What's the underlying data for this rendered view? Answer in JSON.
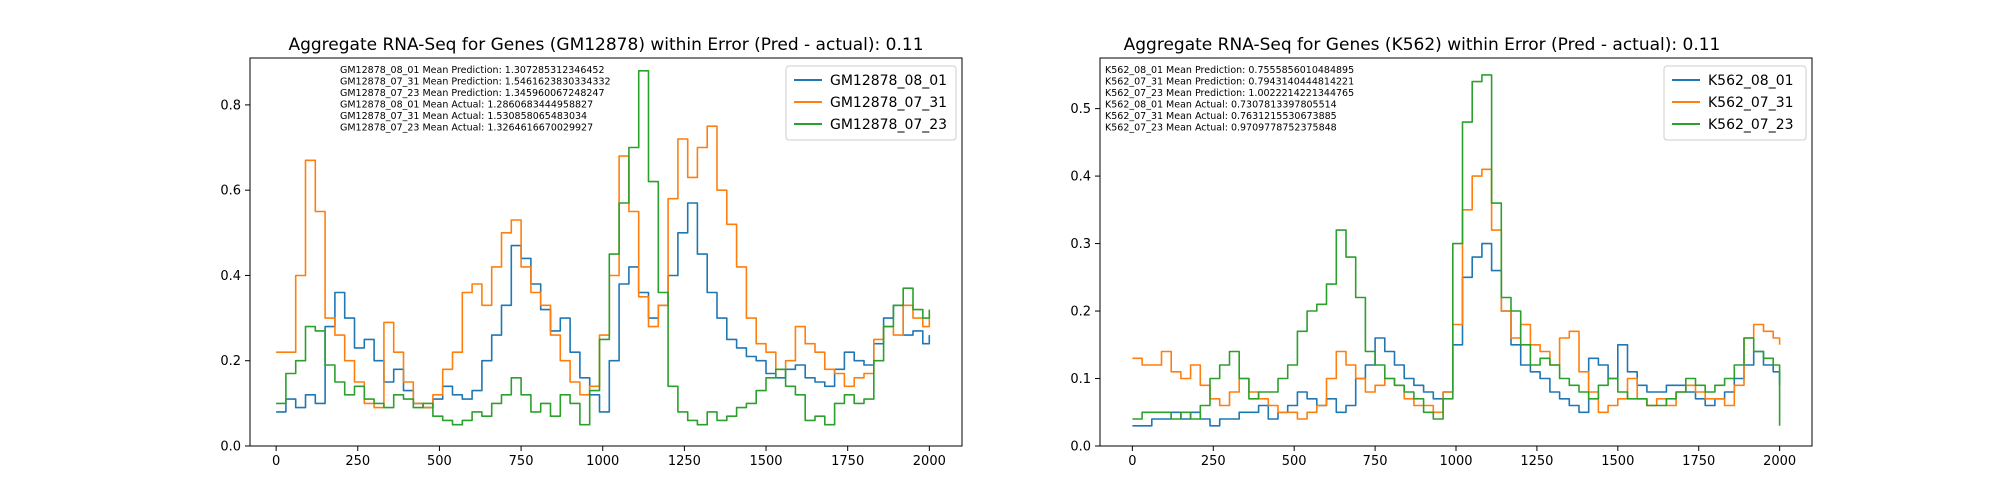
{
  "chart_data": [
    {
      "type": "line",
      "title": "Aggregate RNA-Seq for Genes (GM12878) within Error (Pred - actual): 0.11",
      "xlabel": "",
      "ylabel": "",
      "xlim": [
        -80,
        2100
      ],
      "ylim": [
        0,
        0.91
      ],
      "xticks": [
        0,
        250,
        500,
        750,
        1000,
        1250,
        1500,
        1750,
        2000
      ],
      "yticks": [
        0.0,
        0.2,
        0.4,
        0.6,
        0.8
      ],
      "grid": false,
      "legend_position": "top-right",
      "annotations": [
        "GM12878_08_01 Mean Prediction: 1.307285312346452",
        "GM12878_07_31 Mean Prediction: 1.5461623830334332",
        "GM12878_07_23 Mean Prediction: 1.345960067248247",
        "GM12878_08_01 Mean Actual: 1.2860683444958827",
        "GM12878_07_31 Mean Actual: 1.530858065483034",
        "GM12878_07_23 Mean Actual: 1.3264616670029927"
      ],
      "series": [
        {
          "name": "GM12878_08_01",
          "color": "#1f77b4",
          "x": [
            0,
            30,
            60,
            90,
            120,
            150,
            180,
            210,
            240,
            270,
            300,
            330,
            360,
            390,
            420,
            450,
            480,
            510,
            540,
            570,
            600,
            630,
            660,
            690,
            720,
            750,
            780,
            810,
            840,
            870,
            900,
            930,
            960,
            990,
            1020,
            1050,
            1080,
            1110,
            1140,
            1170,
            1200,
            1230,
            1260,
            1290,
            1320,
            1350,
            1380,
            1410,
            1440,
            1470,
            1500,
            1530,
            1560,
            1590,
            1620,
            1650,
            1680,
            1710,
            1740,
            1770,
            1800,
            1830,
            1860,
            1890,
            1920,
            1950,
            1980,
            2000
          ],
          "y": [
            0.08,
            0.11,
            0.09,
            0.12,
            0.1,
            0.28,
            0.36,
            0.3,
            0.23,
            0.25,
            0.2,
            0.15,
            0.18,
            0.13,
            0.1,
            0.09,
            0.11,
            0.14,
            0.12,
            0.11,
            0.13,
            0.2,
            0.26,
            0.33,
            0.47,
            0.44,
            0.38,
            0.32,
            0.27,
            0.3,
            0.22,
            0.16,
            0.12,
            0.08,
            0.2,
            0.38,
            0.42,
            0.36,
            0.3,
            0.33,
            0.4,
            0.5,
            0.57,
            0.45,
            0.36,
            0.3,
            0.25,
            0.23,
            0.21,
            0.2,
            0.17,
            0.16,
            0.18,
            0.19,
            0.16,
            0.15,
            0.14,
            0.18,
            0.22,
            0.2,
            0.19,
            0.24,
            0.3,
            0.33,
            0.26,
            0.27,
            0.24,
            0.26
          ]
        },
        {
          "name": "GM12878_07_31",
          "color": "#ff7f0e",
          "x": [
            0,
            30,
            60,
            90,
            120,
            150,
            180,
            210,
            240,
            270,
            300,
            330,
            360,
            390,
            420,
            450,
            480,
            510,
            540,
            570,
            600,
            630,
            660,
            690,
            720,
            750,
            780,
            810,
            840,
            870,
            900,
            930,
            960,
            990,
            1020,
            1050,
            1080,
            1110,
            1140,
            1170,
            1200,
            1230,
            1260,
            1290,
            1320,
            1350,
            1380,
            1410,
            1440,
            1470,
            1500,
            1530,
            1560,
            1590,
            1620,
            1650,
            1680,
            1710,
            1740,
            1770,
            1800,
            1830,
            1860,
            1890,
            1920,
            1950,
            1980,
            2000
          ],
          "y": [
            0.22,
            0.22,
            0.4,
            0.67,
            0.55,
            0.3,
            0.26,
            0.2,
            0.15,
            0.1,
            0.09,
            0.29,
            0.22,
            0.15,
            0.1,
            0.09,
            0.12,
            0.18,
            0.22,
            0.36,
            0.38,
            0.33,
            0.42,
            0.5,
            0.53,
            0.42,
            0.36,
            0.33,
            0.26,
            0.2,
            0.15,
            0.12,
            0.14,
            0.26,
            0.4,
            0.68,
            0.55,
            0.35,
            0.28,
            0.33,
            0.58,
            0.72,
            0.63,
            0.7,
            0.75,
            0.6,
            0.52,
            0.42,
            0.3,
            0.24,
            0.22,
            0.18,
            0.2,
            0.28,
            0.24,
            0.22,
            0.18,
            0.17,
            0.14,
            0.16,
            0.17,
            0.25,
            0.28,
            0.26,
            0.33,
            0.3,
            0.28,
            0.31
          ]
        },
        {
          "name": "GM12878_07_23",
          "color": "#2ca02c",
          "x": [
            0,
            30,
            60,
            90,
            120,
            150,
            180,
            210,
            240,
            270,
            300,
            330,
            360,
            390,
            420,
            450,
            480,
            510,
            540,
            570,
            600,
            630,
            660,
            690,
            720,
            750,
            780,
            810,
            840,
            870,
            900,
            930,
            960,
            990,
            1020,
            1050,
            1080,
            1110,
            1140,
            1170,
            1200,
            1230,
            1260,
            1290,
            1320,
            1350,
            1380,
            1410,
            1440,
            1470,
            1500,
            1530,
            1560,
            1590,
            1620,
            1650,
            1680,
            1710,
            1740,
            1770,
            1800,
            1830,
            1860,
            1890,
            1920,
            1950,
            1980,
            2000
          ],
          "y": [
            0.1,
            0.17,
            0.2,
            0.28,
            0.27,
            0.19,
            0.15,
            0.12,
            0.14,
            0.11,
            0.1,
            0.09,
            0.12,
            0.11,
            0.09,
            0.1,
            0.07,
            0.06,
            0.05,
            0.06,
            0.08,
            0.07,
            0.1,
            0.12,
            0.16,
            0.12,
            0.08,
            0.1,
            0.07,
            0.12,
            0.1,
            0.05,
            0.13,
            0.25,
            0.45,
            0.57,
            0.7,
            0.88,
            0.62,
            0.36,
            0.14,
            0.08,
            0.06,
            0.05,
            0.08,
            0.06,
            0.07,
            0.09,
            0.1,
            0.13,
            0.16,
            0.18,
            0.14,
            0.12,
            0.06,
            0.07,
            0.05,
            0.1,
            0.12,
            0.1,
            0.11,
            0.2,
            0.28,
            0.33,
            0.37,
            0.32,
            0.3,
            0.32
          ]
        }
      ]
    },
    {
      "type": "line",
      "title": "Aggregate RNA-Seq for Genes (K562) within Error (Pred - actual): 0.11",
      "xlabel": "",
      "ylabel": "",
      "xlim": [
        -100,
        2100
      ],
      "ylim": [
        0,
        0.575
      ],
      "xticks": [
        0,
        250,
        500,
        750,
        1000,
        1250,
        1500,
        1750,
        2000
      ],
      "yticks": [
        0.0,
        0.1,
        0.2,
        0.3,
        0.4,
        0.5
      ],
      "grid": false,
      "legend_position": "top-right",
      "annotations": [
        "K562_08_01 Mean Prediction: 0.7555856010484895",
        "K562_07_31 Mean Prediction: 0.7943140444814221",
        "K562_07_23 Mean Prediction: 1.0022214221344765",
        "K562_08_01 Mean Actual: 0.7307813397805514",
        "K562_07_31 Mean Actual: 0.7631215530673885",
        "K562_07_23 Mean Actual: 0.9709778752375848"
      ],
      "series": [
        {
          "name": "K562_08_01",
          "color": "#1f77b4",
          "x": [
            0,
            30,
            60,
            90,
            120,
            150,
            180,
            210,
            240,
            270,
            300,
            330,
            360,
            390,
            420,
            450,
            480,
            510,
            540,
            570,
            600,
            630,
            660,
            690,
            720,
            750,
            780,
            810,
            840,
            870,
            900,
            930,
            960,
            990,
            1020,
            1050,
            1080,
            1110,
            1140,
            1170,
            1200,
            1230,
            1260,
            1290,
            1320,
            1350,
            1380,
            1410,
            1440,
            1470,
            1500,
            1530,
            1560,
            1590,
            1620,
            1650,
            1680,
            1710,
            1740,
            1770,
            1800,
            1830,
            1860,
            1890,
            1920,
            1950,
            1980,
            2000
          ],
          "y": [
            0.03,
            0.03,
            0.04,
            0.04,
            0.05,
            0.04,
            0.05,
            0.04,
            0.03,
            0.04,
            0.04,
            0.05,
            0.05,
            0.06,
            0.04,
            0.05,
            0.06,
            0.08,
            0.07,
            0.06,
            0.07,
            0.05,
            0.06,
            0.1,
            0.12,
            0.16,
            0.14,
            0.12,
            0.1,
            0.09,
            0.08,
            0.07,
            0.08,
            0.15,
            0.25,
            0.28,
            0.3,
            0.26,
            0.2,
            0.15,
            0.12,
            0.11,
            0.1,
            0.08,
            0.07,
            0.06,
            0.05,
            0.13,
            0.12,
            0.1,
            0.15,
            0.11,
            0.09,
            0.08,
            0.08,
            0.09,
            0.09,
            0.08,
            0.07,
            0.06,
            0.07,
            0.08,
            0.1,
            0.12,
            0.14,
            0.12,
            0.11,
            0.09
          ]
        },
        {
          "name": "K562_07_31",
          "color": "#ff7f0e",
          "x": [
            0,
            30,
            60,
            90,
            120,
            150,
            180,
            210,
            240,
            270,
            300,
            330,
            360,
            390,
            420,
            450,
            480,
            510,
            540,
            570,
            600,
            630,
            660,
            690,
            720,
            750,
            780,
            810,
            840,
            870,
            900,
            930,
            960,
            990,
            1020,
            1050,
            1080,
            1110,
            1140,
            1170,
            1200,
            1230,
            1260,
            1290,
            1320,
            1350,
            1380,
            1410,
            1440,
            1470,
            1500,
            1530,
            1560,
            1590,
            1620,
            1650,
            1680,
            1710,
            1740,
            1770,
            1800,
            1830,
            1860,
            1890,
            1920,
            1950,
            1980,
            2000
          ],
          "y": [
            0.13,
            0.12,
            0.12,
            0.14,
            0.11,
            0.1,
            0.12,
            0.09,
            0.07,
            0.06,
            0.08,
            0.1,
            0.08,
            0.07,
            0.06,
            0.05,
            0.05,
            0.04,
            0.05,
            0.06,
            0.1,
            0.14,
            0.12,
            0.1,
            0.08,
            0.09,
            0.1,
            0.09,
            0.07,
            0.06,
            0.06,
            0.05,
            0.08,
            0.18,
            0.35,
            0.4,
            0.41,
            0.32,
            0.2,
            0.16,
            0.18,
            0.15,
            0.14,
            0.12,
            0.16,
            0.17,
            0.11,
            0.08,
            0.05,
            0.06,
            0.07,
            0.1,
            0.07,
            0.06,
            0.07,
            0.06,
            0.08,
            0.09,
            0.08,
            0.07,
            0.07,
            0.06,
            0.09,
            0.16,
            0.18,
            0.17,
            0.16,
            0.15
          ]
        },
        {
          "name": "K562_07_23",
          "color": "#2ca02c",
          "x": [
            0,
            30,
            60,
            90,
            120,
            150,
            180,
            210,
            240,
            270,
            300,
            330,
            360,
            390,
            420,
            450,
            480,
            510,
            540,
            570,
            600,
            630,
            660,
            690,
            720,
            750,
            780,
            810,
            840,
            870,
            900,
            930,
            960,
            990,
            1020,
            1050,
            1080,
            1110,
            1140,
            1170,
            1200,
            1230,
            1260,
            1290,
            1320,
            1350,
            1380,
            1410,
            1440,
            1470,
            1500,
            1530,
            1560,
            1590,
            1620,
            1650,
            1680,
            1710,
            1740,
            1770,
            1800,
            1830,
            1860,
            1890,
            1920,
            1950,
            1980,
            2000
          ],
          "y": [
            0.04,
            0.05,
            0.05,
            0.05,
            0.04,
            0.05,
            0.04,
            0.06,
            0.1,
            0.12,
            0.14,
            0.1,
            0.07,
            0.08,
            0.08,
            0.1,
            0.12,
            0.17,
            0.2,
            0.21,
            0.24,
            0.32,
            0.28,
            0.22,
            0.14,
            0.12,
            0.1,
            0.09,
            0.08,
            0.07,
            0.05,
            0.04,
            0.07,
            0.3,
            0.48,
            0.54,
            0.55,
            0.36,
            0.22,
            0.2,
            0.15,
            0.12,
            0.13,
            0.12,
            0.1,
            0.09,
            0.08,
            0.07,
            0.09,
            0.1,
            0.08,
            0.07,
            0.07,
            0.06,
            0.06,
            0.07,
            0.08,
            0.1,
            0.09,
            0.08,
            0.09,
            0.1,
            0.12,
            0.16,
            0.14,
            0.13,
            0.12,
            0.03
          ]
        }
      ]
    }
  ]
}
